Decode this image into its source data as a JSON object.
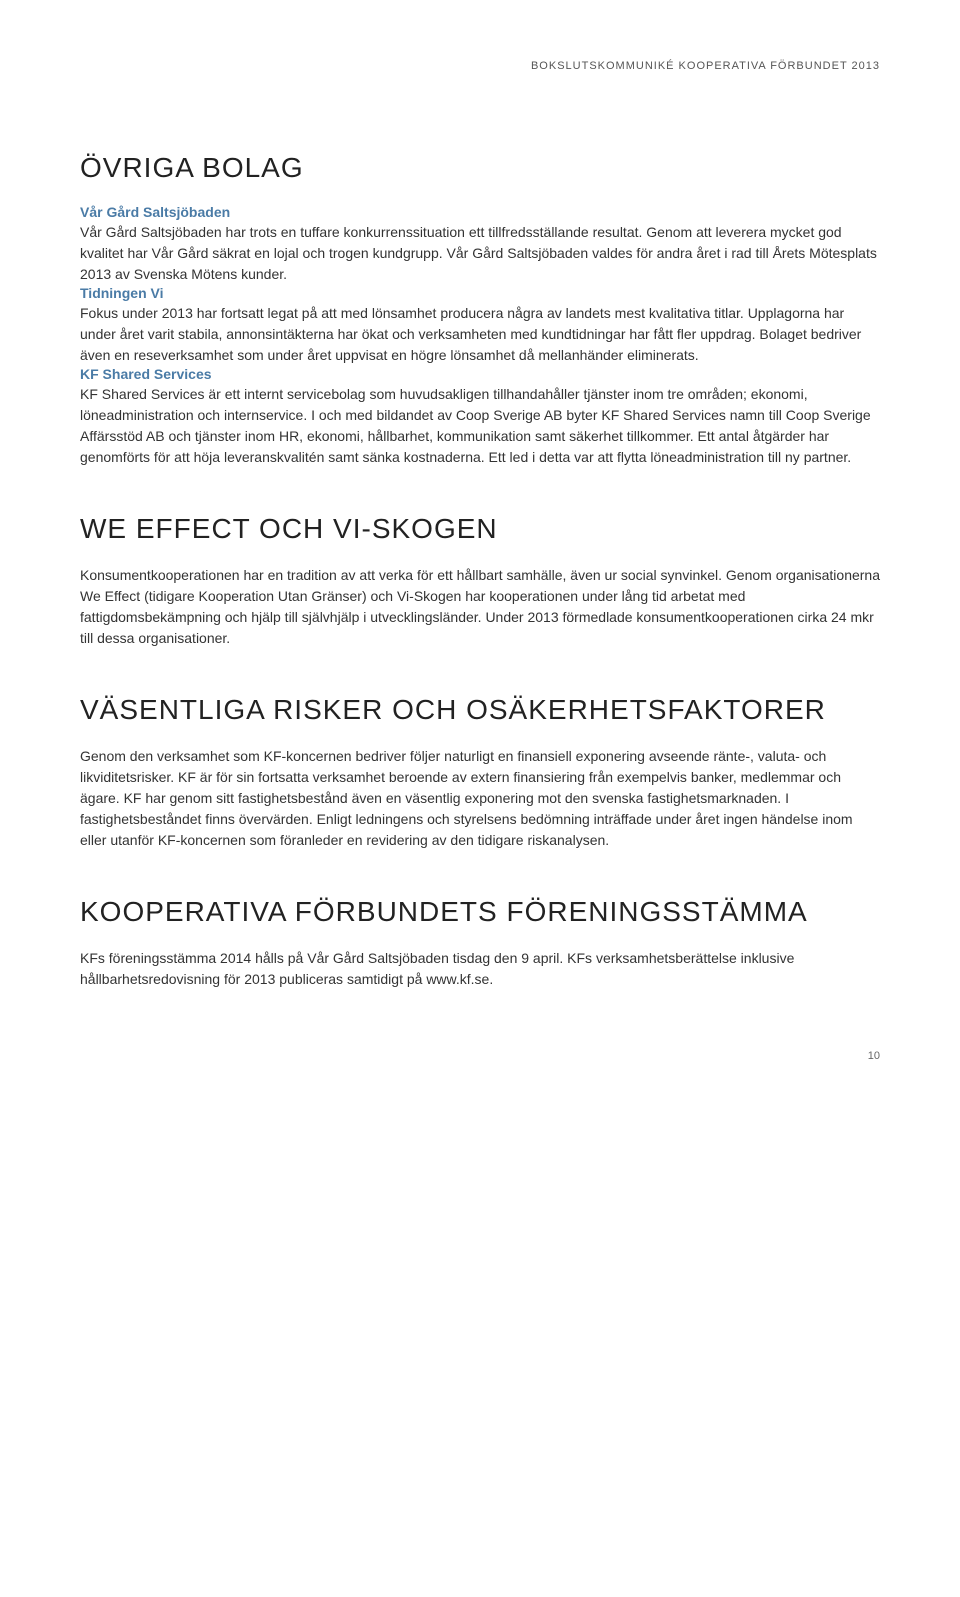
{
  "header": {
    "text": "BOKSLUTSKOMMUNIKÉ KOOPERATIVA FÖRBUNDET 2013"
  },
  "sections": [
    {
      "heading": "ÖVRIGA BOLAG",
      "blocks": [
        {
          "title": "Vår Gård Saltsjöbaden",
          "text": "Vår Gård Saltsjöbaden har trots en tuffare konkurrenssituation ett tillfredsställande resultat. Genom att leverera mycket god kvalitet har Vår Gård säkrat en lojal och trogen kundgrupp. Vår Gård Saltsjöbaden valdes för andra året i rad till Årets Mötesplats 2013 av Svenska Mötens kunder."
        },
        {
          "title": "Tidningen Vi",
          "text": "Fokus under 2013 har fortsatt legat på att med lönsamhet producera några av landets mest kvalitativa titlar. Upplagorna har under året varit stabila, annonsintäkterna har ökat och verksamheten med kundtidningar har fått fler uppdrag. Bolaget bedriver även en reseverksamhet som under året uppvisat en högre lönsamhet då mellanhänder eliminerats."
        },
        {
          "title": "KF Shared Services",
          "text": "KF Shared Services är ett internt servicebolag som huvudsakligen tillhandahåller tjänster inom tre områden; ekonomi, löneadministration och internservice. I och med bildandet av Coop Sverige AB byter KF Shared Services namn till Coop Sverige Affärsstöd AB och tjänster inom HR, ekonomi, hållbarhet, kommunikation samt säkerhet tillkommer. Ett antal åtgärder har genomförts för att höja leveranskvalitén samt sänka kostnaderna. Ett led i detta var att flytta löneadministration till ny partner."
        }
      ]
    },
    {
      "heading": "WE EFFECT OCH VI-SKOGEN",
      "blocks": [
        {
          "title": "",
          "text": "Konsumentkooperationen har en tradition av att verka för ett hållbart samhälle, även ur social synvinkel. Genom organisationerna We Effect (tidigare Kooperation Utan Gränser) och Vi-Skogen har kooperationen under lång tid arbetat med fattigdomsbekämpning och hjälp till självhjälp i utvecklingsländer. Under 2013 förmedlade konsumentkooperationen cirka 24 mkr till dessa organisationer."
        }
      ]
    },
    {
      "heading": "VÄSENTLIGA RISKER OCH OSÄKERHETSFAKTORER",
      "blocks": [
        {
          "title": "",
          "text": "Genom den verksamhet som KF-koncernen bedriver följer naturligt en finansiell exponering avseende ränte-, valuta- och likviditetsrisker. KF är för sin fortsatta verksamhet beroende av extern finansiering från exempelvis banker, medlemmar och ägare. KF har genom sitt fastighetsbestånd även en väsentlig exponering mot den svenska fastighetsmarknaden. I fastighetsbeståndet finns övervärden. Enligt ledningens och styrelsens bedömning inträffade under året ingen händelse inom eller utanför KF-koncernen som föranleder en revidering av den tidigare riskanalysen."
        }
      ]
    },
    {
      "heading": "KOOPERATIVA FÖRBUNDETS FÖRENINGSSTÄMMA",
      "blocks": [
        {
          "title": "",
          "text": "KFs föreningsstämma 2014 hålls på Vår Gård Saltsjöbaden tisdag den 9 april. KFs verksamhetsberättelse inklusive hållbarhetsredovisning för 2013 publiceras samtidigt på www.kf.se."
        }
      ]
    }
  ],
  "pageNumber": "10",
  "colors": {
    "titleBlue": "#4a7ba6",
    "bodyText": "#333333",
    "heading": "#222222",
    "headerText": "#555555",
    "background": "#ffffff"
  },
  "typography": {
    "bodyFontSize": 14,
    "headingFontSize": 28,
    "titleFontSize": 14,
    "headerFontSize": 11
  }
}
